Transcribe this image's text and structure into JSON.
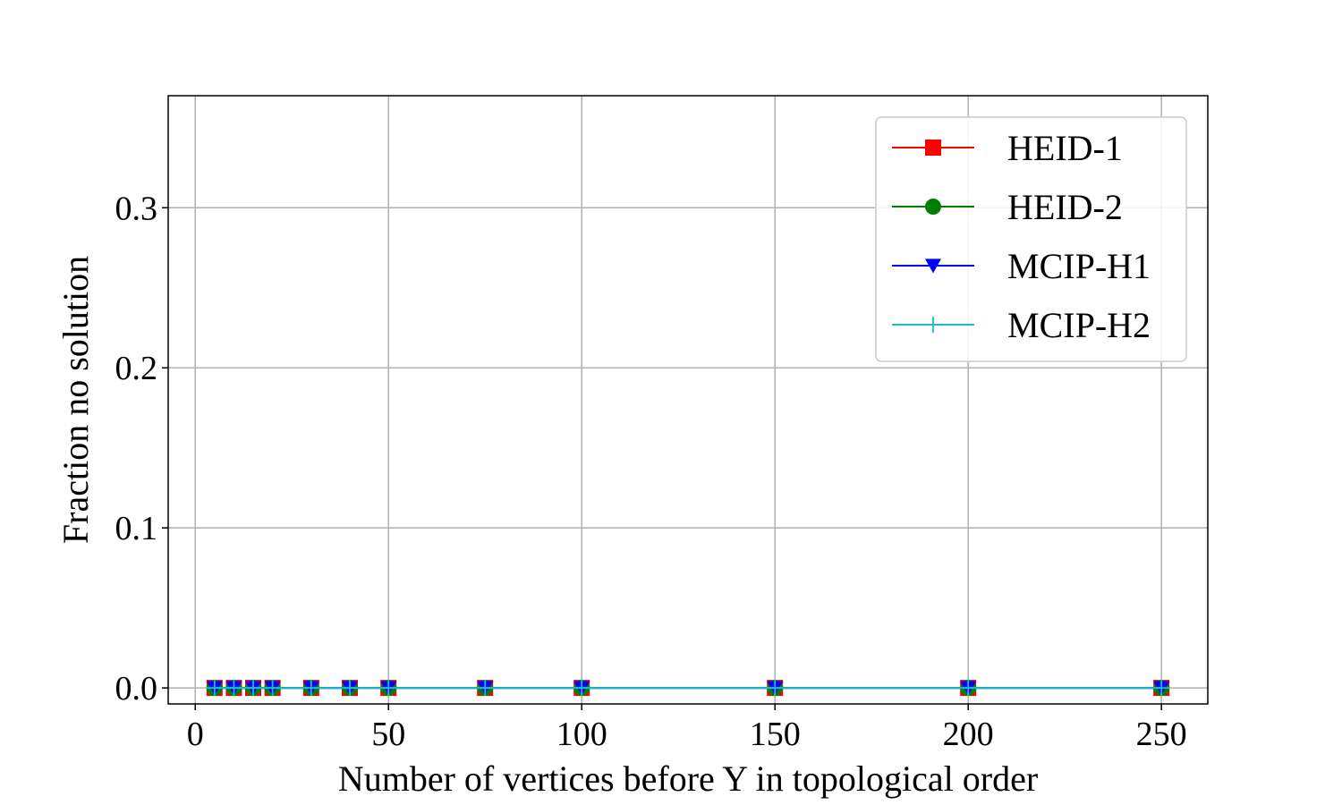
{
  "chart_data": {
    "type": "line",
    "title": "",
    "xlabel": "Number of vertices before Y in topological order",
    "ylabel": "Fraction no solution",
    "xlim": [
      -7,
      262
    ],
    "ylim": [
      -0.01,
      0.37
    ],
    "x_ticks": [
      0,
      50,
      100,
      150,
      200,
      250
    ],
    "x_tick_labels": [
      "0",
      "50",
      "100",
      "150",
      "200",
      "250"
    ],
    "y_ticks": [
      0.0,
      0.1,
      0.2,
      0.3
    ],
    "y_tick_labels": [
      "0.0",
      "0.1",
      "0.2",
      "0.3"
    ],
    "grid": true,
    "legend_position": "upper right",
    "x": [
      5,
      10,
      15,
      20,
      30,
      40,
      50,
      75,
      100,
      150,
      200,
      250
    ],
    "series": [
      {
        "name": "HEID-1",
        "color": "#ff0000",
        "marker": "square",
        "values": [
          0,
          0,
          0,
          0,
          0,
          0,
          0,
          0,
          0,
          0,
          0,
          0
        ]
      },
      {
        "name": "HEID-2",
        "color": "#008000",
        "marker": "circle",
        "values": [
          0,
          0,
          0,
          0,
          0,
          0,
          0,
          0,
          0,
          0,
          0,
          0
        ]
      },
      {
        "name": "MCIP-H1",
        "color": "#0000ff",
        "marker": "triangle-down",
        "values": [
          0,
          0,
          0,
          0,
          0,
          0,
          0,
          0,
          0,
          0,
          0,
          0
        ]
      },
      {
        "name": "MCIP-H2",
        "color": "#17becf",
        "marker": "plus",
        "values": [
          0,
          0,
          0,
          0,
          0,
          0,
          0,
          0,
          0,
          0,
          0,
          0
        ]
      }
    ]
  }
}
